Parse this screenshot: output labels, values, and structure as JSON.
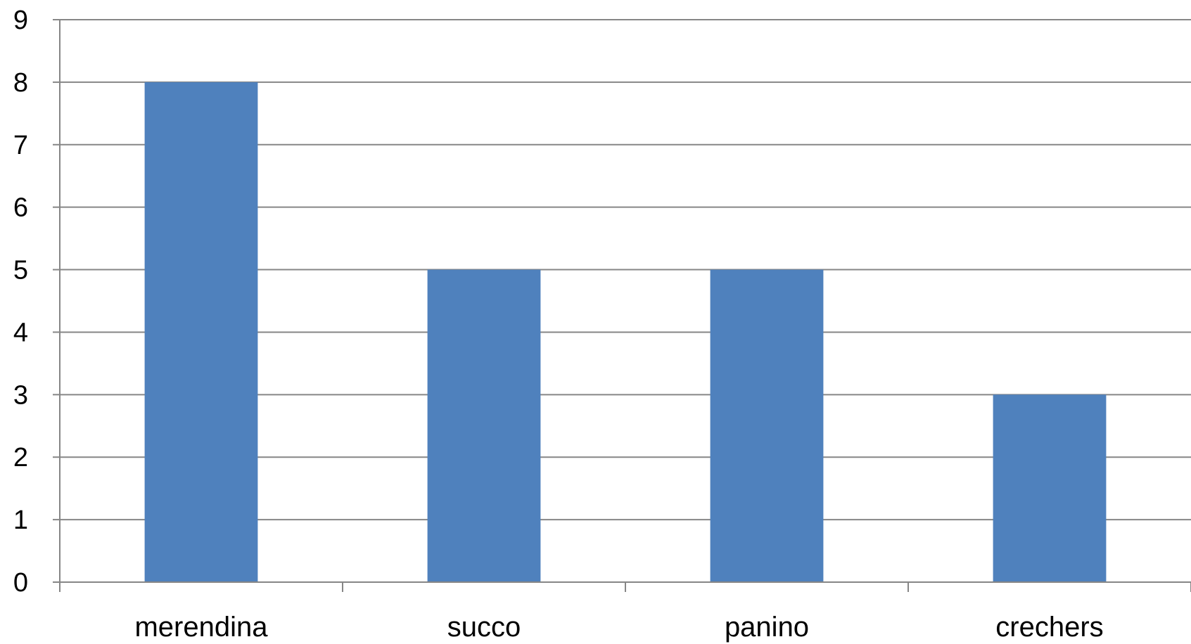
{
  "chart_data": {
    "type": "bar",
    "title": "",
    "xlabel": "",
    "ylabel": "",
    "categories": [
      "merendina",
      "succo",
      "panino",
      "crechers"
    ],
    "values": [
      8,
      5,
      5,
      3
    ],
    "ylim": [
      0,
      9
    ],
    "yticks": [
      "0",
      "1",
      "2",
      "3",
      "4",
      "5",
      "6",
      "7",
      "8",
      "9"
    ],
    "grid": true,
    "legend": "none",
    "colors": {
      "bar": "#4f81bd",
      "gridline": "#868686",
      "axis": "#868686"
    }
  }
}
